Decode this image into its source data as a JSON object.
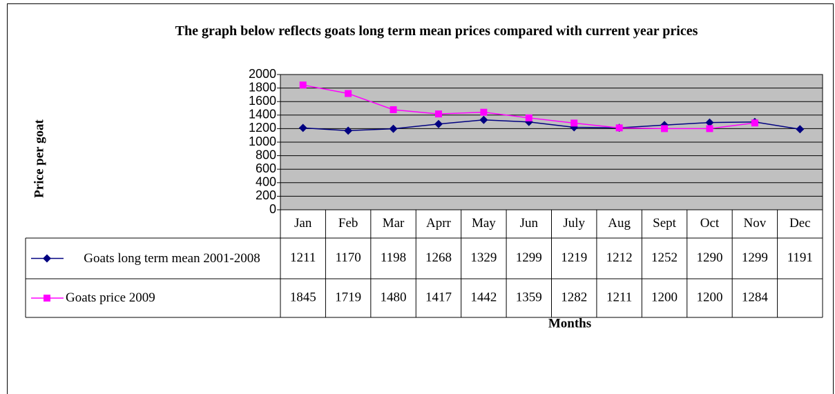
{
  "chart_data": {
    "type": "line",
    "title": "The graph below reflects goats long term mean prices compared with current year prices",
    "y_label": "Price per goat",
    "x_label": "Months",
    "categories": [
      "Jan",
      "Feb",
      "Mar",
      "Aprr",
      "May",
      "Jun",
      "July",
      "Aug",
      "Sept",
      "Oct",
      "Nov",
      "Dec"
    ],
    "series": [
      {
        "name": "Goats long term mean 2001-2008",
        "color": "#000080",
        "marker": "diamond",
        "values": [
          1211,
          1170,
          1198,
          1268,
          1329,
          1299,
          1219,
          1212,
          1252,
          1290,
          1299,
          1191
        ]
      },
      {
        "name": "Goats price 2009",
        "color": "#ff00ff",
        "marker": "square",
        "values": [
          1845,
          1719,
          1480,
          1417,
          1442,
          1359,
          1282,
          1211,
          1200,
          1200,
          1284,
          null
        ]
      }
    ],
    "ylim": [
      0,
      2000
    ],
    "yticks": [
      0,
      200,
      400,
      600,
      800,
      1000,
      1200,
      1400,
      1600,
      1800,
      2000
    ],
    "grid": true,
    "data_table": true
  }
}
